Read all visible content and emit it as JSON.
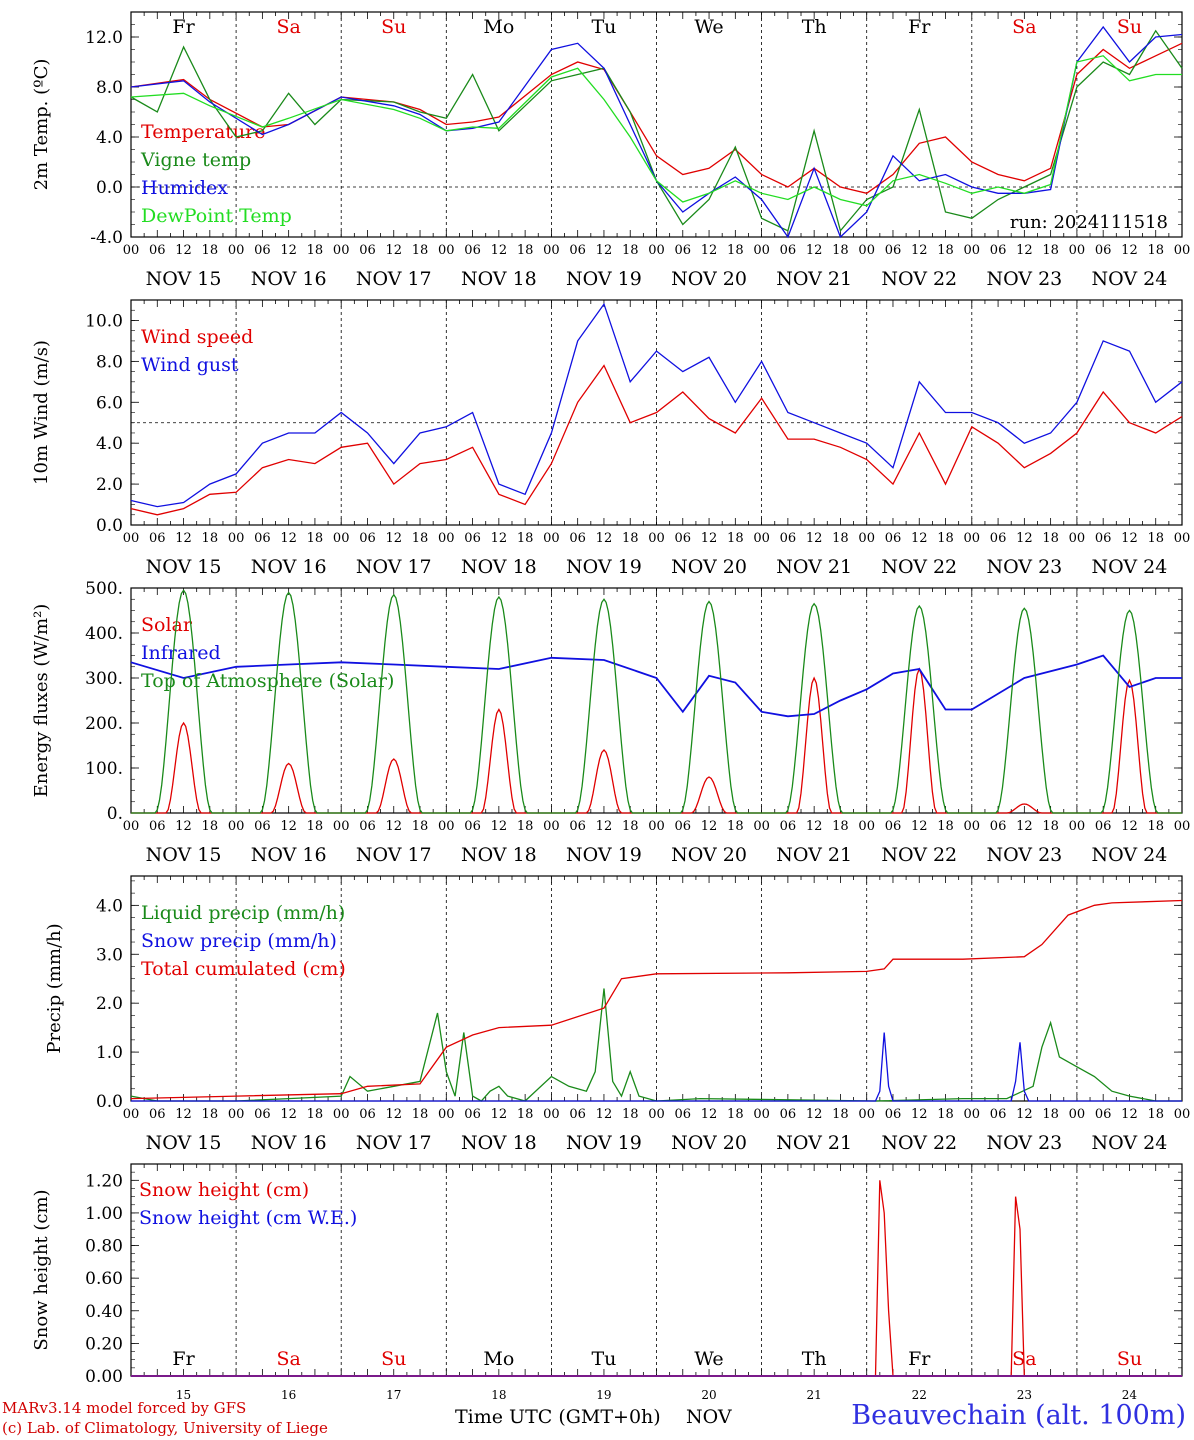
{
  "colors": {
    "red": "#e00000",
    "green": "#1a8a1a",
    "blue": "#1010e0",
    "lightgreen": "#22dd22",
    "black": "#000000",
    "titleBlue": "#3030e0"
  },
  "days": [
    "Fr",
    "Sa",
    "Su",
    "Mo",
    "Tu",
    "We",
    "Th",
    "Fr",
    "Sa",
    "Su"
  ],
  "weekend_days": [
    "Sa",
    "Su"
  ],
  "date_labels": [
    "NOV 15",
    "NOV 16",
    "NOV 17",
    "NOV 18",
    "NOV 19",
    "NOV 20",
    "NOV 21",
    "NOV 22",
    "NOV 23",
    "NOV 24"
  ],
  "hour_ticks": [
    "00",
    "06",
    "12",
    "18"
  ],
  "chart_data": [
    {
      "type": "line",
      "ylabel": "2m Temp. (ºC)",
      "ylim": [
        -4,
        14
      ],
      "yticks": [
        "-4.0",
        "0.0",
        "4.0",
        "8.0",
        "12.0"
      ],
      "annotation": "run: 2024111518",
      "series": [
        {
          "name": "Temperature",
          "color": "red",
          "x": [
            0,
            12,
            18,
            30,
            36,
            48,
            60,
            66,
            72,
            78,
            84,
            96,
            102,
            108,
            114,
            120,
            126,
            132,
            138,
            144,
            150,
            156,
            162,
            168,
            174,
            180,
            186,
            192,
            198,
            204,
            210,
            216,
            222,
            228,
            234,
            240
          ],
          "y": [
            8,
            8.6,
            7,
            4.8,
            5,
            7.2,
            6.8,
            6.2,
            5,
            5.2,
            5.6,
            9,
            10,
            9.4,
            6,
            2.5,
            1,
            1.5,
            3,
            1,
            0,
            1.5,
            0,
            -0.5,
            1,
            3.5,
            4,
            2,
            1,
            0.5,
            1.5,
            9,
            11,
            9.5,
            10.5,
            11.5
          ]
        },
        {
          "name": "Vigne temp",
          "color": "green",
          "x": [
            0,
            6,
            12,
            18,
            24,
            30,
            36,
            42,
            48,
            60,
            66,
            72,
            78,
            84,
            96,
            102,
            108,
            114,
            120,
            126,
            132,
            138,
            144,
            150,
            156,
            162,
            168,
            174,
            180,
            186,
            192,
            198,
            204,
            210,
            216,
            222,
            228,
            234,
            240
          ],
          "y": [
            7.2,
            6,
            11.2,
            7,
            4,
            4.5,
            7.5,
            5,
            7,
            6.8,
            6,
            5.5,
            9,
            4.5,
            8.5,
            9,
            9.5,
            6,
            0.5,
            -3,
            -1,
            3.2,
            -2.5,
            -3.5,
            4.5,
            -3.5,
            -1,
            0,
            6.2,
            -2,
            -2.5,
            -1,
            0,
            1,
            8,
            10,
            9,
            12.5,
            9.5
          ]
        },
        {
          "name": "Humidex",
          "color": "blue",
          "x": [
            0,
            12,
            18,
            30,
            36,
            48,
            60,
            66,
            72,
            78,
            84,
            96,
            102,
            108,
            114,
            120,
            126,
            132,
            138,
            144,
            150,
            156,
            162,
            168,
            174,
            180,
            186,
            192,
            198,
            204,
            210,
            216,
            222,
            228,
            234,
            240
          ],
          "y": [
            8,
            8.5,
            6.8,
            4.2,
            5,
            7.2,
            6.5,
            5.8,
            4.5,
            4.7,
            5.2,
            11,
            11.5,
            9.5,
            5,
            0.5,
            -2,
            -0.5,
            0.8,
            -1,
            -4,
            1.5,
            -4,
            -2,
            2.5,
            0.5,
            1,
            0,
            -0.5,
            -0.5,
            -0.2,
            10,
            12.8,
            10,
            12,
            12.2
          ]
        },
        {
          "name": "DewPoint Temp",
          "color": "lightgreen",
          "x": [
            0,
            12,
            18,
            30,
            36,
            48,
            60,
            66,
            72,
            78,
            84,
            96,
            102,
            108,
            114,
            120,
            126,
            132,
            138,
            144,
            150,
            156,
            162,
            168,
            174,
            180,
            186,
            192,
            198,
            204,
            210,
            216,
            222,
            228,
            234,
            240
          ],
          "y": [
            7.2,
            7.5,
            6.5,
            4.8,
            5.5,
            7,
            6.2,
            5.5,
            4.5,
            4.8,
            4.7,
            8.8,
            9.5,
            7,
            4,
            0.5,
            -1.2,
            -0.5,
            0.5,
            -0.5,
            -1,
            0,
            -1,
            -1.5,
            0.5,
            1,
            0.3,
            -0.5,
            0,
            -0.5,
            0.2,
            10,
            10.5,
            8.5,
            9,
            9
          ]
        }
      ]
    },
    {
      "type": "line",
      "ylabel": "10m Wind (m/s)",
      "ylim": [
        0,
        11
      ],
      "yticks": [
        "0.0",
        "2.0",
        "4.0",
        "6.0",
        "8.0",
        "10.0"
      ],
      "hline": 5,
      "series": [
        {
          "name": "Wind speed",
          "color": "red",
          "x": [
            0,
            6,
            12,
            18,
            24,
            30,
            36,
            42,
            48,
            54,
            60,
            66,
            72,
            78,
            84,
            90,
            96,
            102,
            108,
            114,
            120,
            126,
            132,
            138,
            144,
            150,
            156,
            162,
            168,
            174,
            180,
            186,
            192,
            198,
            204,
            210,
            216,
            222,
            228,
            234,
            240
          ],
          "y": [
            0.8,
            0.5,
            0.8,
            1.5,
            1.6,
            2.8,
            3.2,
            3,
            3.8,
            4,
            2,
            3,
            3.2,
            3.8,
            1.5,
            1,
            3,
            6,
            7.8,
            5,
            5.5,
            6.5,
            5.2,
            4.5,
            6.2,
            4.2,
            4.2,
            3.8,
            3.2,
            2,
            4.5,
            2,
            4.8,
            4,
            2.8,
            3.5,
            4.5,
            6.5,
            5,
            4.5,
            5.3
          ]
        },
        {
          "name": "Wind gust",
          "color": "blue",
          "x": [
            0,
            6,
            12,
            18,
            24,
            30,
            36,
            42,
            48,
            54,
            60,
            66,
            72,
            78,
            84,
            90,
            96,
            102,
            108,
            114,
            120,
            126,
            132,
            138,
            144,
            150,
            156,
            162,
            168,
            174,
            180,
            186,
            192,
            198,
            204,
            210,
            216,
            222,
            228,
            234,
            240
          ],
          "y": [
            1.2,
            0.9,
            1.1,
            2,
            2.5,
            4,
            4.5,
            4.5,
            5.5,
            4.5,
            3,
            4.5,
            4.8,
            5.5,
            2,
            1.5,
            4.5,
            9,
            10.8,
            7,
            8.5,
            7.5,
            8.2,
            6,
            8,
            5.5,
            5,
            4.5,
            4,
            2.8,
            7,
            5.5,
            5.5,
            5,
            4,
            4.5,
            6,
            9,
            8.5,
            6,
            7
          ]
        }
      ]
    },
    {
      "type": "line",
      "ylabel": "Energy fluxes (W/m²)",
      "ylim": [
        0,
        500
      ],
      "yticks": [
        "0.",
        "100.",
        "200.",
        "300.",
        "400.",
        "500."
      ],
      "series": [
        {
          "name": "Solar",
          "color": "red",
          "diurnal_peaks": [
            200,
            110,
            120,
            230,
            140,
            80,
            300,
            320,
            20,
            295
          ]
        },
        {
          "name": "Infrared",
          "color": "blue",
          "x": [
            0,
            12,
            24,
            36,
            48,
            60,
            72,
            84,
            96,
            108,
            120,
            126,
            132,
            138,
            144,
            150,
            156,
            162,
            168,
            174,
            180,
            186,
            192,
            204,
            216,
            222,
            228,
            234,
            240
          ],
          "y": [
            335,
            300,
            325,
            330,
            335,
            330,
            325,
            320,
            345,
            340,
            300,
            225,
            305,
            290,
            225,
            215,
            220,
            250,
            275,
            310,
            320,
            230,
            230,
            300,
            330,
            350,
            280,
            300,
            300
          ]
        },
        {
          "name": "Top of Atmosphere (Solar)",
          "color": "green",
          "diurnal_peaks": [
            495,
            490,
            485,
            480,
            475,
            470,
            465,
            460,
            455,
            450
          ]
        }
      ]
    },
    {
      "type": "line",
      "ylabel": "Precip (mm/h)",
      "ylim": [
        0,
        4.6
      ],
      "yticks": [
        "0.0",
        "1.0",
        "2.0",
        "3.0",
        "4.0"
      ],
      "series": [
        {
          "name": "Liquid precip (mm/h)",
          "color": "green",
          "x": [
            0,
            6,
            12,
            24,
            36,
            48,
            50,
            54,
            60,
            66,
            70,
            72,
            74,
            76,
            78,
            80,
            82,
            84,
            86,
            90,
            96,
            100,
            104,
            106,
            108,
            110,
            112,
            114,
            116,
            120,
            130,
            170,
            190,
            200,
            206,
            208,
            210,
            212,
            216,
            220,
            224,
            228,
            234,
            240
          ],
          "y": [
            0.1,
            0,
            0,
            0,
            0.05,
            0.1,
            0.5,
            0.2,
            0.3,
            0.4,
            1.8,
            0.6,
            0.1,
            1.4,
            0.1,
            0,
            0.2,
            0.3,
            0.1,
            0,
            0.5,
            0.3,
            0.2,
            0.6,
            2.3,
            0.4,
            0.1,
            0.6,
            0.1,
            0,
            0.05,
            0,
            0.05,
            0.05,
            0.3,
            1.1,
            1.6,
            0.9,
            0.7,
            0.5,
            0.2,
            0.1,
            0,
            0
          ]
        },
        {
          "name": "Snow precip (mm/h)",
          "color": "blue",
          "x": [
            0,
            170,
            171,
            172,
            173,
            174,
            175,
            176,
            200,
            201,
            202,
            203,
            204,
            205,
            240
          ],
          "y": [
            0,
            0,
            0.2,
            1.4,
            0.3,
            0,
            0,
            0,
            0,
            0,
            0.4,
            1.2,
            0.2,
            0,
            0
          ]
        },
        {
          "name": "Total cumulated (cm)",
          "color": "red",
          "x": [
            0,
            24,
            48,
            54,
            66,
            72,
            78,
            84,
            96,
            108,
            112,
            120,
            150,
            168,
            172,
            174,
            190,
            204,
            208,
            214,
            220,
            224,
            240
          ],
          "y": [
            0.05,
            0.1,
            0.15,
            0.3,
            0.35,
            1.1,
            1.35,
            1.5,
            1.55,
            1.9,
            2.5,
            2.6,
            2.62,
            2.65,
            2.7,
            2.9,
            2.9,
            2.95,
            3.2,
            3.8,
            4.0,
            4.05,
            4.1
          ]
        }
      ]
    },
    {
      "type": "line",
      "ylabel": "Snow height (cm)",
      "ylim": [
        0,
        1.3
      ],
      "yticks": [
        "0.00",
        "0.20",
        "0.40",
        "0.60",
        "0.80",
        "1.00",
        "1.20"
      ],
      "series": [
        {
          "name": "Snow height (cm)",
          "color": "red",
          "x": [
            0,
            170,
            171,
            172,
            173,
            174,
            200,
            201,
            202,
            203,
            204,
            240
          ],
          "y": [
            0,
            0,
            1.2,
            1,
            0.4,
            0,
            0,
            0,
            1.1,
            0.9,
            0,
            0
          ]
        },
        {
          "name": "Snow height (cm W.E.)",
          "color": "blue",
          "x": [
            0,
            240
          ],
          "y": [
            0,
            0
          ]
        }
      ]
    }
  ],
  "bottom_dates": [
    "15",
    "16",
    "17",
    "18",
    "19",
    "20",
    "21",
    "22",
    "23",
    "24"
  ],
  "footer": {
    "credit1": "MARv3.14 model forced by GFS",
    "credit2": "(c) Lab. of Climatology, University of Liege",
    "xaxis": "Time UTC (GMT+0h)",
    "month": "NOV",
    "station": "Beauvechain (alt. 100m)"
  }
}
